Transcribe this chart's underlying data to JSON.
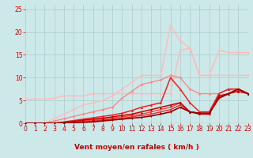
{
  "xlabel": "Vent moyen/en rafales ( km/h )",
  "xlim": [
    0,
    23
  ],
  "ylim": [
    0,
    26
  ],
  "bg_color": "#cce8e8",
  "grid_color": "#aacccc",
  "x_ticks": [
    0,
    1,
    2,
    3,
    4,
    5,
    6,
    7,
    8,
    9,
    10,
    11,
    12,
    13,
    14,
    15,
    16,
    17,
    18,
    19,
    20,
    21,
    22,
    23
  ],
  "y_ticks": [
    0,
    5,
    10,
    15,
    20,
    25
  ],
  "lines": [
    {
      "x": [
        0,
        1,
        2,
        3,
        4,
        5,
        6,
        7,
        8,
        9,
        10,
        11,
        12,
        13,
        14,
        15,
        16,
        17,
        18,
        19,
        20,
        21,
        22,
        23
      ],
      "y": [
        5.3,
        5.3,
        5.3,
        5.5,
        6.0,
        6.0,
        6.0,
        6.5,
        6.5,
        6.5,
        6.5,
        6.5,
        6.5,
        6.5,
        6.5,
        6.5,
        16.0,
        16.5,
        10.5,
        10.5,
        16.0,
        15.5,
        15.5,
        15.5
      ],
      "color": "#ffbbbb",
      "lw": 1.0,
      "marker": "D",
      "ms": 1.8,
      "zorder": 2
    },
    {
      "x": [
        0,
        1,
        2,
        3,
        4,
        5,
        6,
        7,
        8,
        9,
        10,
        11,
        12,
        13,
        14,
        15,
        16,
        17,
        18,
        19,
        20,
        21,
        22,
        23
      ],
      "y": [
        0,
        0,
        0,
        1.0,
        2.0,
        3.0,
        4.0,
        4.5,
        5.0,
        6.0,
        7.5,
        9.0,
        10.5,
        10.5,
        10.5,
        21.5,
        18.0,
        16.5,
        10.5,
        10.5,
        10.5,
        10.5,
        10.5,
        10.5
      ],
      "color": "#ffbbbb",
      "lw": 1.0,
      "marker": "D",
      "ms": 1.8,
      "zorder": 2
    },
    {
      "x": [
        0,
        1,
        2,
        3,
        4,
        5,
        6,
        7,
        8,
        9,
        10,
        11,
        12,
        13,
        14,
        15,
        16,
        17,
        18,
        19,
        20,
        21,
        22,
        23
      ],
      "y": [
        0,
        0,
        0,
        0.5,
        1.0,
        1.5,
        2.0,
        2.5,
        3.0,
        3.5,
        5.5,
        7.0,
        8.5,
        9.0,
        9.5,
        10.5,
        10.0,
        7.5,
        6.5,
        6.5,
        6.5,
        7.5,
        7.0,
        6.5
      ],
      "color": "#ff8888",
      "lw": 1.0,
      "marker": "D",
      "ms": 1.8,
      "zorder": 3
    },
    {
      "x": [
        0,
        1,
        2,
        3,
        4,
        5,
        6,
        7,
        8,
        9,
        10,
        11,
        12,
        13,
        14,
        15,
        16,
        17,
        18,
        19,
        20,
        21,
        22,
        23
      ],
      "y": [
        0,
        0,
        0,
        0,
        0.3,
        0.6,
        0.9,
        1.2,
        1.5,
        1.8,
        2.2,
        2.8,
        3.5,
        4.0,
        4.5,
        10.0,
        7.5,
        4.5,
        2.5,
        2.5,
        6.5,
        7.5,
        7.5,
        6.5
      ],
      "color": "#ee2222",
      "lw": 1.1,
      "marker": "^",
      "ms": 2.2,
      "zorder": 4
    },
    {
      "x": [
        0,
        1,
        2,
        3,
        4,
        5,
        6,
        7,
        8,
        9,
        10,
        11,
        12,
        13,
        14,
        15,
        16,
        17,
        18,
        19,
        20,
        21,
        22,
        23
      ],
      "y": [
        0,
        0,
        0,
        0,
        0.2,
        0.4,
        0.7,
        0.9,
        1.1,
        1.4,
        1.7,
        2.0,
        2.5,
        3.0,
        3.5,
        4.0,
        4.5,
        2.5,
        2.0,
        2.0,
        6.0,
        6.5,
        7.0,
        6.5
      ],
      "color": "#cc0000",
      "lw": 1.1,
      "marker": "^",
      "ms": 2.2,
      "zorder": 4
    },
    {
      "x": [
        0,
        1,
        2,
        3,
        4,
        5,
        6,
        7,
        8,
        9,
        10,
        11,
        12,
        13,
        14,
        15,
        16,
        17,
        18,
        19,
        20,
        21,
        22,
        23
      ],
      "y": [
        0,
        0,
        0,
        0,
        0.1,
        0.3,
        0.5,
        0.7,
        0.9,
        1.1,
        1.4,
        1.7,
        2.0,
        2.5,
        3.0,
        3.5,
        4.5,
        2.5,
        2.2,
        2.2,
        5.5,
        6.5,
        7.5,
        6.5
      ],
      "color": "#ff4444",
      "lw": 1.0,
      "marker": "s",
      "ms": 1.8,
      "zorder": 3
    },
    {
      "x": [
        0,
        1,
        2,
        3,
        4,
        5,
        6,
        7,
        8,
        9,
        10,
        11,
        12,
        13,
        14,
        15,
        16,
        17,
        18,
        19,
        20,
        21,
        22,
        23
      ],
      "y": [
        0,
        0,
        0,
        0,
        0.05,
        0.15,
        0.3,
        0.5,
        0.7,
        0.9,
        1.1,
        1.4,
        1.7,
        2.0,
        2.5,
        3.0,
        4.0,
        2.5,
        2.2,
        2.2,
        5.5,
        6.5,
        7.5,
        6.5
      ],
      "color": "#dd3333",
      "lw": 1.0,
      "marker": "s",
      "ms": 1.8,
      "zorder": 3
    },
    {
      "x": [
        0,
        1,
        2,
        3,
        4,
        5,
        6,
        7,
        8,
        9,
        10,
        11,
        12,
        13,
        14,
        15,
        16,
        17,
        18,
        19,
        20,
        21,
        22,
        23
      ],
      "y": [
        0,
        0,
        0,
        0,
        0,
        0.1,
        0.2,
        0.3,
        0.5,
        0.7,
        0.9,
        1.1,
        1.3,
        1.6,
        2.0,
        2.5,
        3.5,
        2.5,
        2.2,
        2.2,
        5.5,
        6.5,
        7.5,
        6.5
      ],
      "color": "#990000",
      "lw": 1.2,
      "marker": "v",
      "ms": 2.2,
      "zorder": 5
    }
  ],
  "arrow_color": "#cc0000",
  "tick_color": "#cc0000",
  "xlabel_color": "#cc0000",
  "tick_fontsize": 5.5,
  "xlabel_fontsize": 6.5
}
